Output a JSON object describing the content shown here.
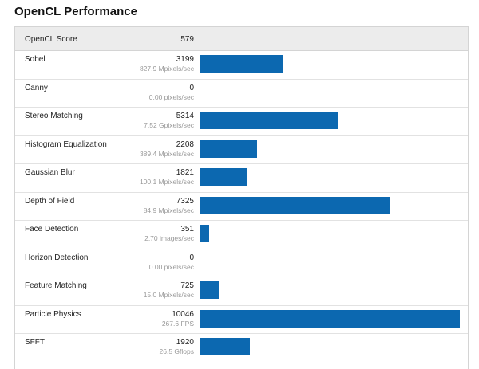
{
  "page": {
    "title": "OpenCL Performance"
  },
  "summary": {
    "label": "OpenCL Score",
    "score": "579"
  },
  "max_score": 10046,
  "colors": {
    "bar": "#0c68b0",
    "header_bg": "#ececec",
    "subtext": "#999999"
  },
  "tests": [
    {
      "name": "Sobel",
      "score": "3199",
      "rate": "827.9 Mpixels/sec",
      "value": 3199
    },
    {
      "name": "Canny",
      "score": "0",
      "rate": "0.00 pixels/sec",
      "value": 0
    },
    {
      "name": "Stereo Matching",
      "score": "5314",
      "rate": "7.52 Gpixels/sec",
      "value": 5314
    },
    {
      "name": "Histogram Equalization",
      "score": "2208",
      "rate": "389.4 Mpixels/sec",
      "value": 2208
    },
    {
      "name": "Gaussian Blur",
      "score": "1821",
      "rate": "100.1 Mpixels/sec",
      "value": 1821
    },
    {
      "name": "Depth of Field",
      "score": "7325",
      "rate": "84.9 Mpixels/sec",
      "value": 7325
    },
    {
      "name": "Face Detection",
      "score": "351",
      "rate": "2.70 images/sec",
      "value": 351
    },
    {
      "name": "Horizon Detection",
      "score": "0",
      "rate": "0.00 pixels/sec",
      "value": 0
    },
    {
      "name": "Feature Matching",
      "score": "725",
      "rate": "15.0 Mpixels/sec",
      "value": 725
    },
    {
      "name": "Particle Physics",
      "score": "10046",
      "rate": "267.6 FPS",
      "value": 10046
    },
    {
      "name": "SFFT",
      "score": "1920",
      "rate": "26.5 Gflops",
      "value": 1920
    }
  ]
}
